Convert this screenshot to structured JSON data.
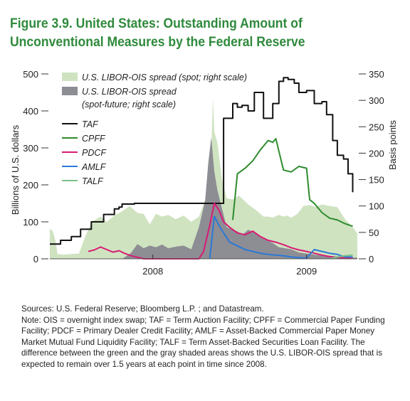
{
  "title_line1": "Figure 3.9. United States: Outstanding Amount of",
  "title_line2": "Unconventional Measures by the Federal Reserve",
  "colors": {
    "title": "#2f8a3c",
    "libor_spot": "#cfe3c1",
    "libor_spot_future": "#8d8d94",
    "TAF": "#111111",
    "CPFF": "#2e8b2e",
    "PDCF": "#d81b73",
    "AMLF": "#2a7ad6",
    "TALF": "#7cc08a"
  },
  "sources": "Sources: U.S. Federal Reserve; Bloomberg L.P. ; and Datastream.",
  "note": "Note: OIS = overnight index swap; TAF = Term Auction Facility; CPFF = Commercial Paper Funding Facility; PDCF = Primary Dealer Credit Facility; AMLF = Asset-Backed Commercial Paper Money Market Mutual Fund Liquidity Facility; TALF = Term Asset-Backed Securities Loan Facility. The difference between the green and the gray shaded areas shows the U.S. LIBOR-OIS spread that is expected to remain over 1.5 years at each point in time since 2008.",
  "chart_data": {
    "type": "line",
    "ylabel": "Billions of U.S. dollars",
    "y2label": "Basis points",
    "ylim": [
      0,
      500
    ],
    "y2lim": [
      0,
      350
    ],
    "yticks": [
      0,
      100,
      200,
      300,
      400,
      500
    ],
    "y2ticks": [
      0,
      50,
      100,
      150,
      200,
      250,
      300,
      350
    ],
    "xlim": [
      2007.33,
      2009.33
    ],
    "xticks": [
      {
        "value": 2008.0,
        "label": "2008"
      },
      {
        "value": 2009.0,
        "label": "2009"
      }
    ],
    "grid": false,
    "legend_position": "top-left",
    "legend": [
      {
        "key": "libor_spot",
        "label": "U.S. LIBOR-OIS spread (spot; right scale)",
        "label_line1": "U.S. LIBOR-OIS spread (spot; right scale)",
        "label_line2": "",
        "style": "area"
      },
      {
        "key": "libor_spot_future",
        "label": "U.S. LIBOR-OIS spread (spot-future; right scale)",
        "label_line1": "U.S. LIBOR-OIS spread",
        "label_line2": "(spot-future; right scale)",
        "style": "area"
      },
      {
        "key": "TAF",
        "label": "TAF",
        "label_line1": "TAF",
        "label_line2": "",
        "style": "line"
      },
      {
        "key": "CPFF",
        "label": "CPFF",
        "label_line1": "CPFF",
        "label_line2": "",
        "style": "line"
      },
      {
        "key": "PDCF",
        "label": "PDCF",
        "label_line1": "PDCF",
        "label_line2": "",
        "style": "line"
      },
      {
        "key": "AMLF",
        "label": "AMLF",
        "label_line1": "AMLF",
        "label_line2": "",
        "style": "line"
      },
      {
        "key": "TALF",
        "label": "TALF",
        "label_line1": "TALF",
        "label_line2": "",
        "style": "line"
      }
    ],
    "areas": [
      {
        "key": "libor_spot",
        "axis": "right",
        "x": [
          2007.33,
          2007.35,
          2007.37,
          2007.38,
          2007.42,
          2007.47,
          2007.52,
          2007.56,
          2007.58,
          2007.6,
          2007.63,
          2007.66,
          2007.7,
          2007.75,
          2007.8,
          2007.85,
          2007.9,
          2007.94,
          2007.98,
          2008.02,
          2008.06,
          2008.1,
          2008.15,
          2008.2,
          2008.25,
          2008.3,
          2008.35,
          2008.37,
          2008.39,
          2008.4,
          2008.42,
          2008.45,
          2008.48,
          2008.52,
          2008.56,
          2008.62,
          2008.68,
          2008.72,
          2008.75,
          2008.78,
          2008.82,
          2008.85,
          2008.87,
          2008.9,
          2008.94,
          2008.98,
          2009.02,
          2009.06,
          2009.1,
          2009.15,
          2009.2,
          2009.25,
          2009.3,
          2009.33
        ],
        "y": [
          57,
          52,
          30,
          9,
          8,
          9,
          10,
          42,
          55,
          68,
          75,
          80,
          70,
          82,
          90,
          100,
          87,
          85,
          65,
          85,
          80,
          83,
          75,
          82,
          70,
          80,
          120,
          85,
          305,
          240,
          220,
          150,
          115,
          112,
          120,
          103,
          90,
          80,
          80,
          78,
          83,
          80,
          82,
          78,
          85,
          100,
          102,
          98,
          103,
          100,
          98,
          75,
          60,
          48
        ]
      },
      {
        "key": "libor_spot_future",
        "axis": "right",
        "x": [
          2007.33,
          2007.8,
          2007.84,
          2007.86,
          2007.9,
          2007.94,
          2007.98,
          2008.02,
          2008.06,
          2008.1,
          2008.15,
          2008.2,
          2008.25,
          2008.3,
          2008.34,
          2008.36,
          2008.38,
          2008.4,
          2008.42,
          2008.45,
          2008.48,
          2008.52,
          2008.55,
          2008.58,
          2008.62,
          2008.66,
          2008.7,
          2008.74,
          2008.78,
          2008.82,
          2008.86,
          2008.9,
          2008.95,
          2009.0,
          2009.05,
          2009.1,
          2009.15,
          2009.2,
          2009.25,
          2009.33
        ],
        "y": [
          0,
          0,
          7,
          12,
          28,
          20,
          25,
          22,
          27,
          20,
          23,
          25,
          18,
          60,
          110,
          180,
          230,
          165,
          130,
          95,
          60,
          55,
          52,
          45,
          55,
          50,
          40,
          35,
          30,
          22,
          20,
          18,
          12,
          10,
          8,
          6,
          5,
          4,
          3,
          2
        ]
      }
    ],
    "series": [
      {
        "key": "TAF",
        "name": "TAF",
        "x": [
          2007.33,
          2007.38,
          2007.4,
          2007.44,
          2007.47,
          2007.5,
          2007.53,
          2007.56,
          2007.6,
          2007.64,
          2007.68,
          2007.72,
          2007.75,
          2007.78,
          2007.8,
          2007.84,
          2007.88,
          2008.1,
          2008.28,
          2008.33,
          2008.4,
          2008.45,
          2008.46,
          2008.5,
          2008.52,
          2008.55,
          2008.58,
          2008.62,
          2008.66,
          2008.7,
          2008.72,
          2008.75,
          2008.78,
          2008.82,
          2008.85,
          2008.88,
          2008.92,
          2008.95,
          2009.0,
          2009.05,
          2009.1,
          2009.13,
          2009.17,
          2009.2,
          2009.24,
          2009.27,
          2009.3
        ],
        "y": [
          40,
          40,
          50,
          50,
          60,
          60,
          80,
          80,
          100,
          100,
          120,
          120,
          135,
          140,
          148,
          148,
          150,
          150,
          150,
          150,
          150,
          150,
          380,
          380,
          420,
          410,
          415,
          400,
          450,
          450,
          380,
          380,
          420,
          480,
          490,
          485,
          475,
          450,
          455,
          420,
          425,
          390,
          320,
          280,
          270,
          230,
          180
        ]
      },
      {
        "key": "CPFF",
        "name": "CPFF",
        "x": [
          2008.52,
          2008.55,
          2008.6,
          2008.65,
          2008.7,
          2008.75,
          2008.78,
          2008.8,
          2008.85,
          2008.9,
          2008.95,
          2009.0,
          2009.02,
          2009.05,
          2009.1,
          2009.15,
          2009.2,
          2009.25,
          2009.3
        ],
        "y": [
          105,
          230,
          245,
          265,
          295,
          320,
          315,
          325,
          240,
          235,
          250,
          245,
          160,
          150,
          125,
          110,
          105,
          95,
          88
        ]
      },
      {
        "key": "PDCF",
        "name": "PDCF",
        "x": [
          2007.58,
          2007.62,
          2007.66,
          2007.7,
          2007.74,
          2007.78,
          2007.82,
          2007.86,
          2007.9,
          2007.94,
          2008.3,
          2008.33,
          2008.37,
          2008.4,
          2008.43,
          2008.46,
          2008.5,
          2008.55,
          2008.6,
          2008.65,
          2008.7,
          2008.75,
          2008.8,
          2008.85,
          2008.9,
          2008.95,
          2009.0,
          2009.05,
          2009.1,
          2009.15,
          2009.2,
          2009.25,
          2009.3
        ],
        "y": [
          20,
          24,
          32,
          25,
          18,
          22,
          14,
          8,
          4,
          0,
          0,
          20,
          90,
          150,
          132,
          100,
          85,
          70,
          65,
          75,
          60,
          50,
          45,
          38,
          30,
          24,
          20,
          15,
          10,
          6,
          4,
          2,
          1
        ]
      },
      {
        "key": "AMLF",
        "name": "AMLF",
        "x": [
          2008.37,
          2008.4,
          2008.43,
          2008.46,
          2008.5,
          2008.55,
          2008.6,
          2008.65,
          2008.7,
          2008.75,
          2008.8,
          2008.85,
          2008.9,
          2008.95,
          2009.0,
          2009.05,
          2009.1,
          2009.15,
          2009.2,
          2009.25,
          2009.3
        ],
        "y": [
          0,
          115,
          90,
          70,
          45,
          35,
          25,
          20,
          15,
          12,
          10,
          8,
          5,
          3,
          2,
          25,
          20,
          15,
          12,
          5,
          5
        ]
      },
      {
        "key": "TALF",
        "name": "TALF",
        "x": [
          2009.15,
          2009.2,
          2009.25,
          2009.3
        ],
        "y": [
          0,
          5,
          8,
          10
        ]
      }
    ]
  }
}
